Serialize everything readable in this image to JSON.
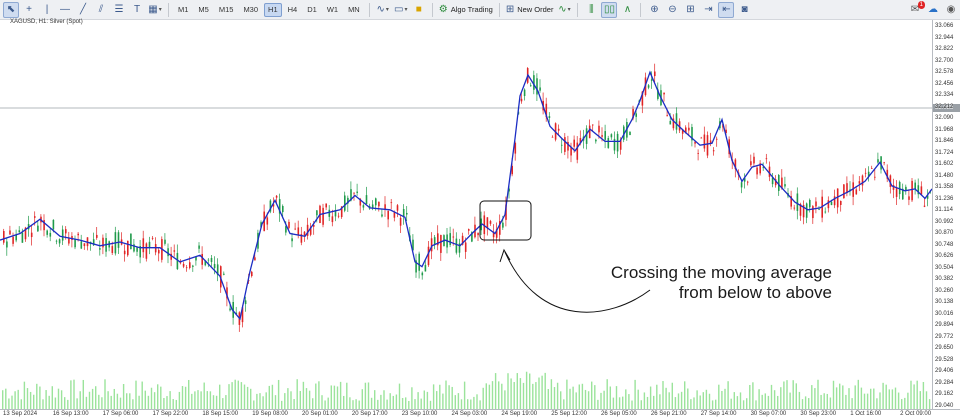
{
  "toolbar": {
    "timeframes": [
      "M1",
      "M5",
      "M15",
      "M30",
      "H1",
      "H4",
      "D1",
      "W1",
      "MN"
    ],
    "active_timeframe": "H1",
    "algo_trading_label": "Algo Trading",
    "new_order_label": "New Order",
    "notification_count": "1"
  },
  "symbol_label": "XAGUSD, H1:  Silver (Spot)",
  "current_price": "32.088",
  "price_axis": {
    "ticks": [
      "33.066",
      "32.944",
      "32.822",
      "32.700",
      "32.578",
      "32.456",
      "32.334",
      "32.212",
      "32.090",
      "31.968",
      "31.846",
      "31.724",
      "31.602",
      "31.480",
      "31.358",
      "31.236",
      "31.114",
      "30.992",
      "30.870",
      "30.748",
      "30.626",
      "30.504",
      "30.382",
      "30.260",
      "30.138",
      "30.016",
      "29.894",
      "29.772",
      "29.650",
      "29.528",
      "29.406",
      "29.284",
      "29.162",
      "29.040"
    ]
  },
  "time_axis": {
    "labels": [
      "13 Sep 2024",
      "16 Sep 13:00",
      "17 Sep 06:00",
      "17 Sep 22:00",
      "18 Sep 15:00",
      "19 Sep 08:00",
      "20 Sep 01:00",
      "20 Sep 17:00",
      "23 Sep 10:00",
      "24 Sep 03:00",
      "24 Sep 19:00",
      "25 Sep 12:00",
      "26 Sep 05:00",
      "26 Sep 21:00",
      "27 Sep 14:00",
      "30 Sep 07:00",
      "30 Sep 23:00",
      "1 Oct 16:00",
      "2 Oct 09:00"
    ]
  },
  "annotation": {
    "line1": "Crossing the moving average",
    "line2": "from below to above"
  },
  "colors": {
    "bull": "#1f9a4a",
    "bear": "#e02424",
    "ma": "#1c2dc4",
    "volume": "#9be39b",
    "grid": "#d8dde3"
  },
  "chart_data": {
    "type": "candlestick",
    "ylim": [
      29.0,
      33.1
    ],
    "ma_series": [
      [
        0,
        30.78
      ],
      [
        20,
        30.85
      ],
      [
        40,
        31.0
      ],
      [
        60,
        30.82
      ],
      [
        80,
        30.78
      ],
      [
        100,
        30.72
      ],
      [
        120,
        30.76
      ],
      [
        140,
        30.7
      ],
      [
        160,
        30.7
      ],
      [
        180,
        30.55
      ],
      [
        200,
        30.62
      ],
      [
        220,
        30.4
      ],
      [
        232,
        30.05
      ],
      [
        240,
        29.95
      ],
      [
        250,
        30.45
      ],
      [
        262,
        30.95
      ],
      [
        275,
        31.2
      ],
      [
        290,
        30.85
      ],
      [
        305,
        30.82
      ],
      [
        320,
        31.05
      ],
      [
        340,
        31.1
      ],
      [
        355,
        31.25
      ],
      [
        370,
        31.12
      ],
      [
        390,
        31.1
      ],
      [
        405,
        31.02
      ],
      [
        415,
        30.55
      ],
      [
        422,
        30.5
      ],
      [
        432,
        30.72
      ],
      [
        445,
        30.78
      ],
      [
        460,
        30.72
      ],
      [
        472,
        30.85
      ],
      [
        482,
        30.95
      ],
      [
        495,
        30.85
      ],
      [
        505,
        31.05
      ],
      [
        515,
        31.85
      ],
      [
        520,
        32.3
      ],
      [
        528,
        32.52
      ],
      [
        538,
        32.35
      ],
      [
        550,
        31.98
      ],
      [
        562,
        31.85
      ],
      [
        575,
        31.72
      ],
      [
        590,
        31.95
      ],
      [
        605,
        31.82
      ],
      [
        620,
        31.82
      ],
      [
        632,
        32.05
      ],
      [
        640,
        32.25
      ],
      [
        650,
        32.55
      ],
      [
        660,
        32.3
      ],
      [
        672,
        32.05
      ],
      [
        685,
        31.92
      ],
      [
        700,
        31.78
      ],
      [
        712,
        31.8
      ],
      [
        722,
        32.05
      ],
      [
        732,
        31.62
      ],
      [
        742,
        31.4
      ],
      [
        752,
        31.55
      ],
      [
        762,
        31.58
      ],
      [
        780,
        31.35
      ],
      [
        795,
        31.18
      ],
      [
        808,
        31.1
      ],
      [
        820,
        31.12
      ],
      [
        835,
        31.22
      ],
      [
        850,
        31.3
      ],
      [
        865,
        31.4
      ],
      [
        880,
        31.6
      ],
      [
        892,
        31.35
      ],
      [
        905,
        31.3
      ],
      [
        915,
        31.32
      ],
      [
        925,
        31.22
      ],
      [
        932,
        31.32
      ]
    ]
  }
}
